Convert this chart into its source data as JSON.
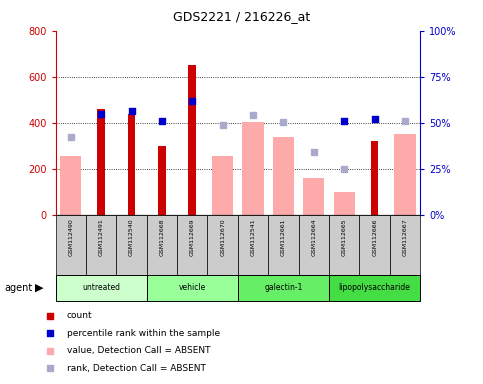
{
  "title": "GDS2221 / 216226_at",
  "samples": [
    "GSM112490",
    "GSM112491",
    "GSM112540",
    "GSM112668",
    "GSM112669",
    "GSM112670",
    "GSM112541",
    "GSM112661",
    "GSM112664",
    "GSM112665",
    "GSM112666",
    "GSM112667"
  ],
  "groups": [
    {
      "label": "untreated",
      "indices": [
        0,
        1,
        2
      ],
      "color": "#ccffcc"
    },
    {
      "label": "vehicle",
      "indices": [
        3,
        4,
        5
      ],
      "color": "#99ff99"
    },
    {
      "label": "galectin-1",
      "indices": [
        6,
        7,
        8
      ],
      "color": "#66ee66"
    },
    {
      "label": "lipopolysaccharide",
      "indices": [
        9,
        10,
        11
      ],
      "color": "#44dd44"
    }
  ],
  "count_values": [
    null,
    460,
    440,
    300,
    650,
    null,
    null,
    null,
    null,
    null,
    320,
    null
  ],
  "percentile_values": [
    null,
    440,
    450,
    410,
    495,
    null,
    null,
    null,
    null,
    410,
    415,
    null
  ],
  "absent_value_bars": [
    255,
    null,
    null,
    null,
    null,
    255,
    405,
    340,
    160,
    100,
    null,
    350
  ],
  "absent_rank_dots": [
    340,
    null,
    null,
    null,
    null,
    390,
    435,
    405,
    275,
    200,
    null,
    410
  ],
  "ylim_left": [
    0,
    800
  ],
  "ylim_right": [
    0,
    100
  ],
  "yticks_left": [
    0,
    200,
    400,
    600,
    800
  ],
  "yticks_right": [
    0,
    25,
    50,
    75,
    100
  ],
  "ytick_labels_right": [
    "0%",
    "25%",
    "50%",
    "75%",
    "100%"
  ],
  "count_color": "#cc0000",
  "percentile_color": "#0000cc",
  "absent_value_color": "#ffaaaa",
  "absent_rank_color": "#aaaacc",
  "grid_lines": [
    200,
    400,
    600
  ],
  "sample_bg_color": "#cccccc",
  "sample_border_color": "#000000"
}
